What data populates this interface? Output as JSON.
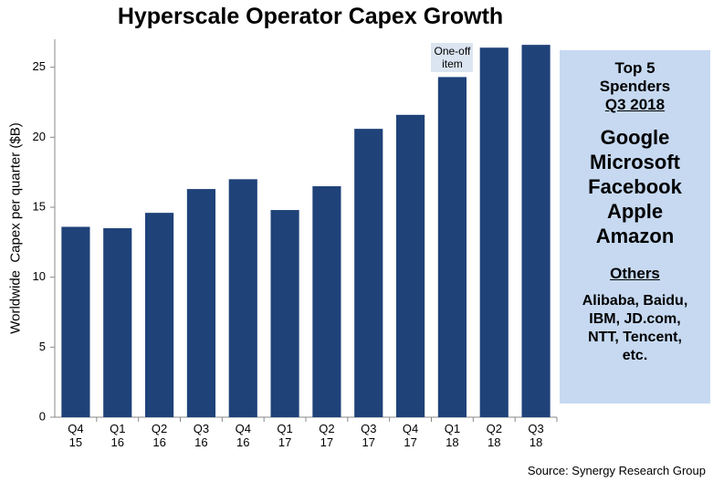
{
  "chart_data": {
    "type": "bar",
    "title": "Hyperscale Operator Capex Growth",
    "y_label": "Worldwide  Capex per quarter ($B)",
    "categories": [
      "Q4\n15",
      "Q1\n16",
      "Q2\n16",
      "Q3\n16",
      "Q4\n16",
      "Q1\n17",
      "Q2\n17",
      "Q3\n17",
      "Q4\n17",
      "Q1\n18",
      "Q2\n18",
      "Q3\n18"
    ],
    "values": [
      13.6,
      13.5,
      14.6,
      16.3,
      17.0,
      14.8,
      16.5,
      20.6,
      21.6,
      24.3,
      26.4,
      26.6
    ],
    "color": "#1f4279",
    "ylim": [
      0,
      27
    ],
    "yticks": [
      0,
      5,
      10,
      15,
      20,
      25
    ],
    "grid": false,
    "annotation": {
      "text": "One-off item",
      "category_index": 9
    },
    "sidebar": {
      "heading": [
        "Top 5",
        "Spenders",
        "Q3 2018"
      ],
      "top5": [
        "Google",
        "Microsoft",
        "Facebook",
        "Apple",
        "Amazon"
      ],
      "others_heading": "Others",
      "others": [
        "Alibaba, Baidu,",
        "IBM, JD.com,",
        "NTT, Tencent,",
        "etc."
      ]
    },
    "source": "Source:  Synergy Research  Group"
  }
}
